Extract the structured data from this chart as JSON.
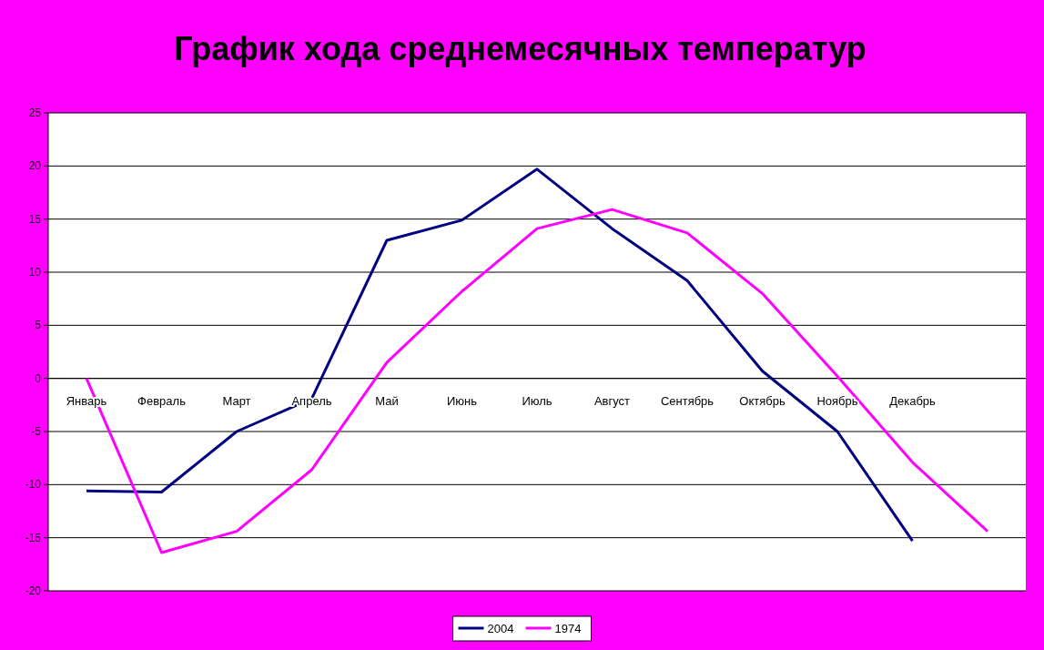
{
  "chart_data": {
    "type": "line",
    "title": "График хода среднемесячных температур",
    "categories": [
      "Январь",
      "Февраль",
      "Март",
      "Апрель",
      "Май",
      "Июнь",
      "Июль",
      "Август",
      "Сентябрь",
      "Октябрь",
      "Ноябрь",
      "Декабрь",
      null
    ],
    "series": [
      {
        "name": "2004",
        "color": "#000080",
        "values": [
          -10.6,
          -10.7,
          -5.0,
          -1.9,
          13.0,
          14.9,
          19.7,
          14.1,
          9.2,
          0.7,
          -5.0,
          -15.3,
          null
        ]
      },
      {
        "name": "1974",
        "color": "#ff00ff",
        "values": [
          0,
          -16.4,
          -14.4,
          -8.6,
          1.5,
          8.2,
          14.1,
          15.9,
          13.7,
          8.0,
          0.2,
          -7.9,
          -14.4
        ]
      }
    ],
    "ylim": [
      -20,
      25
    ],
    "yticks": [
      -20,
      -15,
      -10,
      -5,
      0,
      5,
      10,
      15,
      20,
      25
    ],
    "grid": "y",
    "legend": "bottom",
    "marker": "none",
    "line_style": "solid"
  }
}
